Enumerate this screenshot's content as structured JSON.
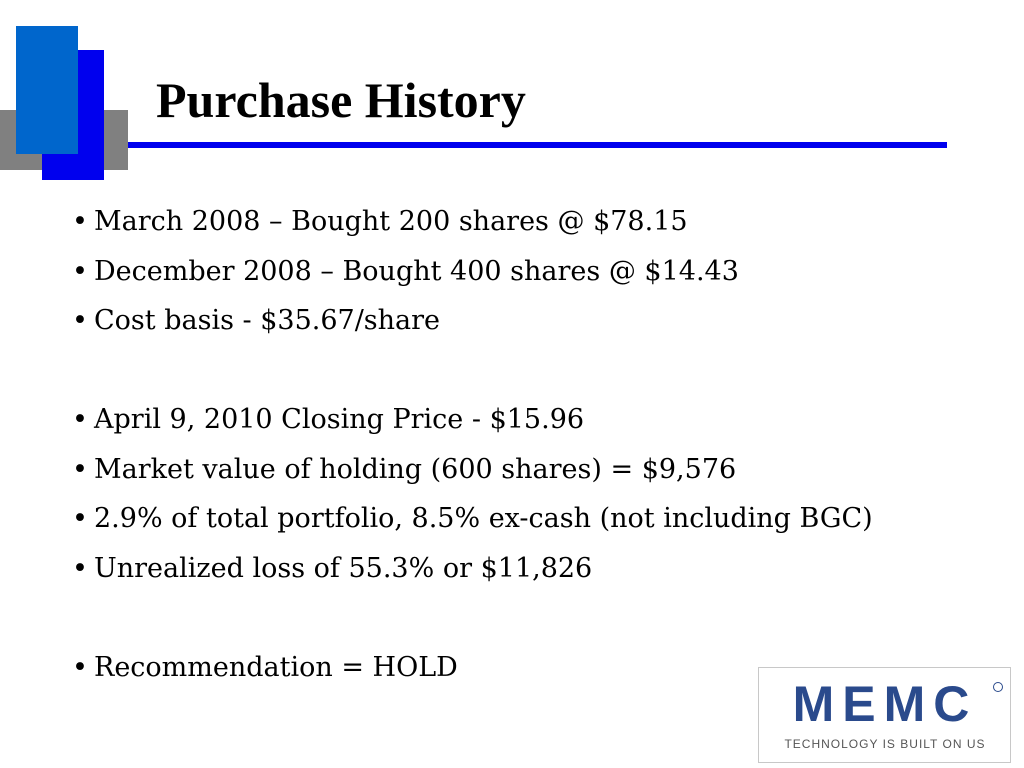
{
  "title": "Purchase History",
  "bullet_symbol": "•",
  "bullets": [
    "March 2008 – Bought 200 shares @ $78.15",
    "December 2008 – Bought 400 shares @ $14.43",
    "Cost basis - $35.67/share",
    "",
    "April 9, 2010 Closing Price - $15.96",
    "Market value of holding (600 shares) = $9,576",
    "2.9% of total portfolio, 8.5% ex-cash (not including BGC)",
    "Unrealized loss of 55.3% or $11,826",
    "",
    "Recommendation = HOLD"
  ],
  "logo": {
    "wordmark": "MEMC",
    "tagline": "TECHNOLOGY IS BUILT ON US"
  },
  "colors": {
    "accent_blue": "#0000ee",
    "light_blue": "#0066cc",
    "gray": "#808080",
    "logo_blue": "#2a4a8c"
  }
}
